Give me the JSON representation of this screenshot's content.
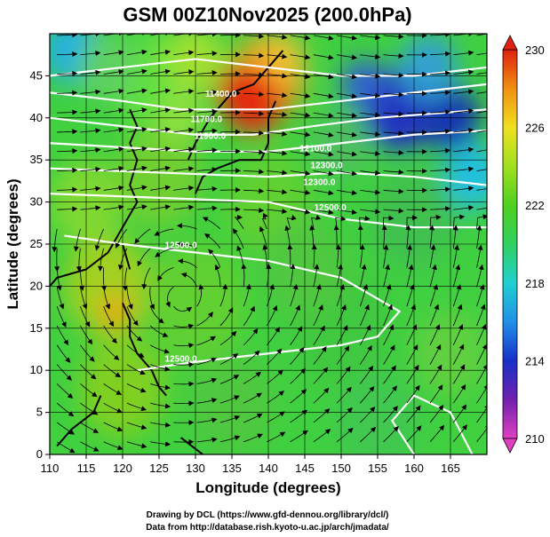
{
  "title": "GSM 00Z10Nov2025 (200.0hPa)",
  "credits": {
    "line1": "Drawing by DCL (https://www.gfd-dennou.org/library/dcl/)",
    "line2": "Data from http://database.rish.kyoto-u.ac.jp/arch/jmadata/"
  },
  "map": {
    "xlabel": "Longitude (degrees)",
    "ylabel": "Latitude  (degrees)",
    "xlim": [
      110,
      170
    ],
    "ylim": [
      0,
      50
    ],
    "x_ticks": [
      "110",
      "115",
      "120",
      "125",
      "130",
      "135",
      "140",
      "145",
      "150",
      "155",
      "160",
      "165"
    ],
    "y_ticks": [
      "0",
      "5",
      "10",
      "15",
      "20",
      "25",
      "30",
      "35",
      "40",
      "45"
    ],
    "grid": true,
    "field": "temperature",
    "colorbar": {
      "min": 210,
      "max": 230,
      "ticks": [
        "210",
        "214",
        "218",
        "222",
        "226",
        "230"
      ],
      "colors": [
        "#e040c0",
        "#7020b0",
        "#1830c8",
        "#2090e8",
        "#20d0d0",
        "#30d060",
        "#50d020",
        "#a0e020",
        "#f0e020",
        "#f09010",
        "#e02010"
      ]
    },
    "contour_labels": [
      {
        "text": "11400.0",
        "lon": 133.5,
        "lat": 42.5
      },
      {
        "text": "11700.0",
        "lon": 131.5,
        "lat": 39.5
      },
      {
        "text": "11900.0",
        "lon": 132,
        "lat": 37.5
      },
      {
        "text": "12100.0",
        "lon": 146.5,
        "lat": 36
      },
      {
        "text": "12300.0",
        "lon": 148,
        "lat": 34
      },
      {
        "text": "12300.0",
        "lon": 147,
        "lat": 32
      },
      {
        "text": "12500.0",
        "lon": 148.5,
        "lat": 29
      },
      {
        "text": "12500.0",
        "lon": 128,
        "lat": 24.5
      },
      {
        "text": "12500.0",
        "lon": 128,
        "lat": 11
      }
    ]
  }
}
